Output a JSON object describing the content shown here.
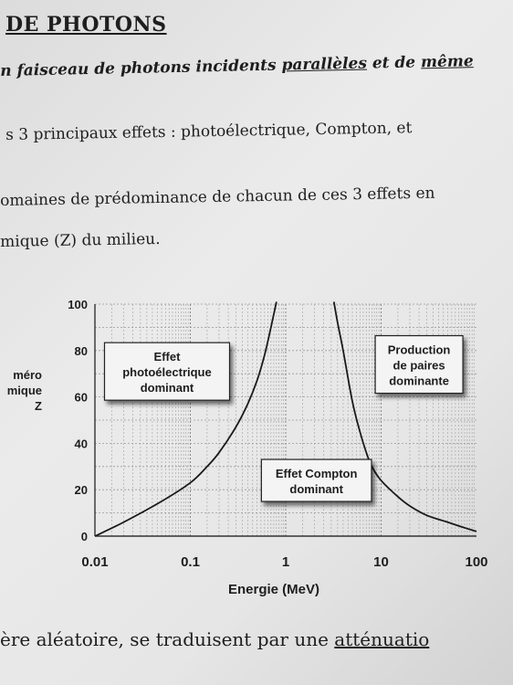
{
  "document": {
    "title": "DE PHOTONS",
    "line1_pre": "n faisceau de photons incidents ",
    "line1_u1": "parallèles",
    "line1_mid": " et de ",
    "line1_u2": "même",
    "line2": "s 3 principaux effets : photoélectrique, Compton, et",
    "line3": "omaines de prédominance de chacun de ces 3 effets en",
    "line4": "mique (Z) du milieu.",
    "line5_pre": "ère aléatoire, se traduisent par une ",
    "line5_u": "atténuatio"
  },
  "chart_data": {
    "type": "line",
    "xlabel": "Energie (MeV)",
    "ylabel": [
      "méro",
      "mique",
      "Z"
    ],
    "xscale": "log",
    "xlim": [
      0.01,
      100
    ],
    "ylim": [
      0,
      100
    ],
    "xticks": [
      {
        "value": 0.01,
        "label": "0.01"
      },
      {
        "value": 0.1,
        "label": "0.1"
      },
      {
        "value": 1,
        "label": "1"
      },
      {
        "value": 10,
        "label": "10"
      },
      {
        "value": 100,
        "label": "100"
      }
    ],
    "yticks": [
      {
        "value": 0,
        "label": "0"
      },
      {
        "value": 20,
        "label": "20"
      },
      {
        "value": 40,
        "label": "40"
      },
      {
        "value": 60,
        "label": "60"
      },
      {
        "value": 80,
        "label": "80"
      },
      {
        "value": 100,
        "label": "100"
      }
    ],
    "grid": true,
    "series": [
      {
        "x": [
          0.01,
          0.02,
          0.05,
          0.1,
          0.15,
          0.2,
          0.3,
          0.4,
          0.5,
          0.6,
          0.7,
          0.8
        ],
        "y": [
          0,
          6,
          15,
          23,
          30,
          36,
          47,
          57,
          67,
          78,
          90,
          101
        ]
      },
      {
        "x": [
          3.2,
          3.5,
          4,
          5,
          6,
          7,
          8,
          10,
          15,
          20,
          30,
          50,
          70,
          100
        ],
        "y": [
          101,
          92,
          80,
          58,
          45,
          36,
          30,
          24,
          17,
          13,
          9,
          6,
          4,
          2
        ]
      }
    ],
    "annotations": [
      {
        "text": [
          "Effet",
          "photoélectrique",
          "dominant"
        ],
        "x": 0.057,
        "y": 71
      },
      {
        "text": [
          "Effet Compton",
          "dominant"
        ],
        "x": 2.1,
        "y": 24
      },
      {
        "text": [
          "Production",
          "de paires",
          "dominante"
        ],
        "x": 25,
        "y": 74
      }
    ]
  }
}
